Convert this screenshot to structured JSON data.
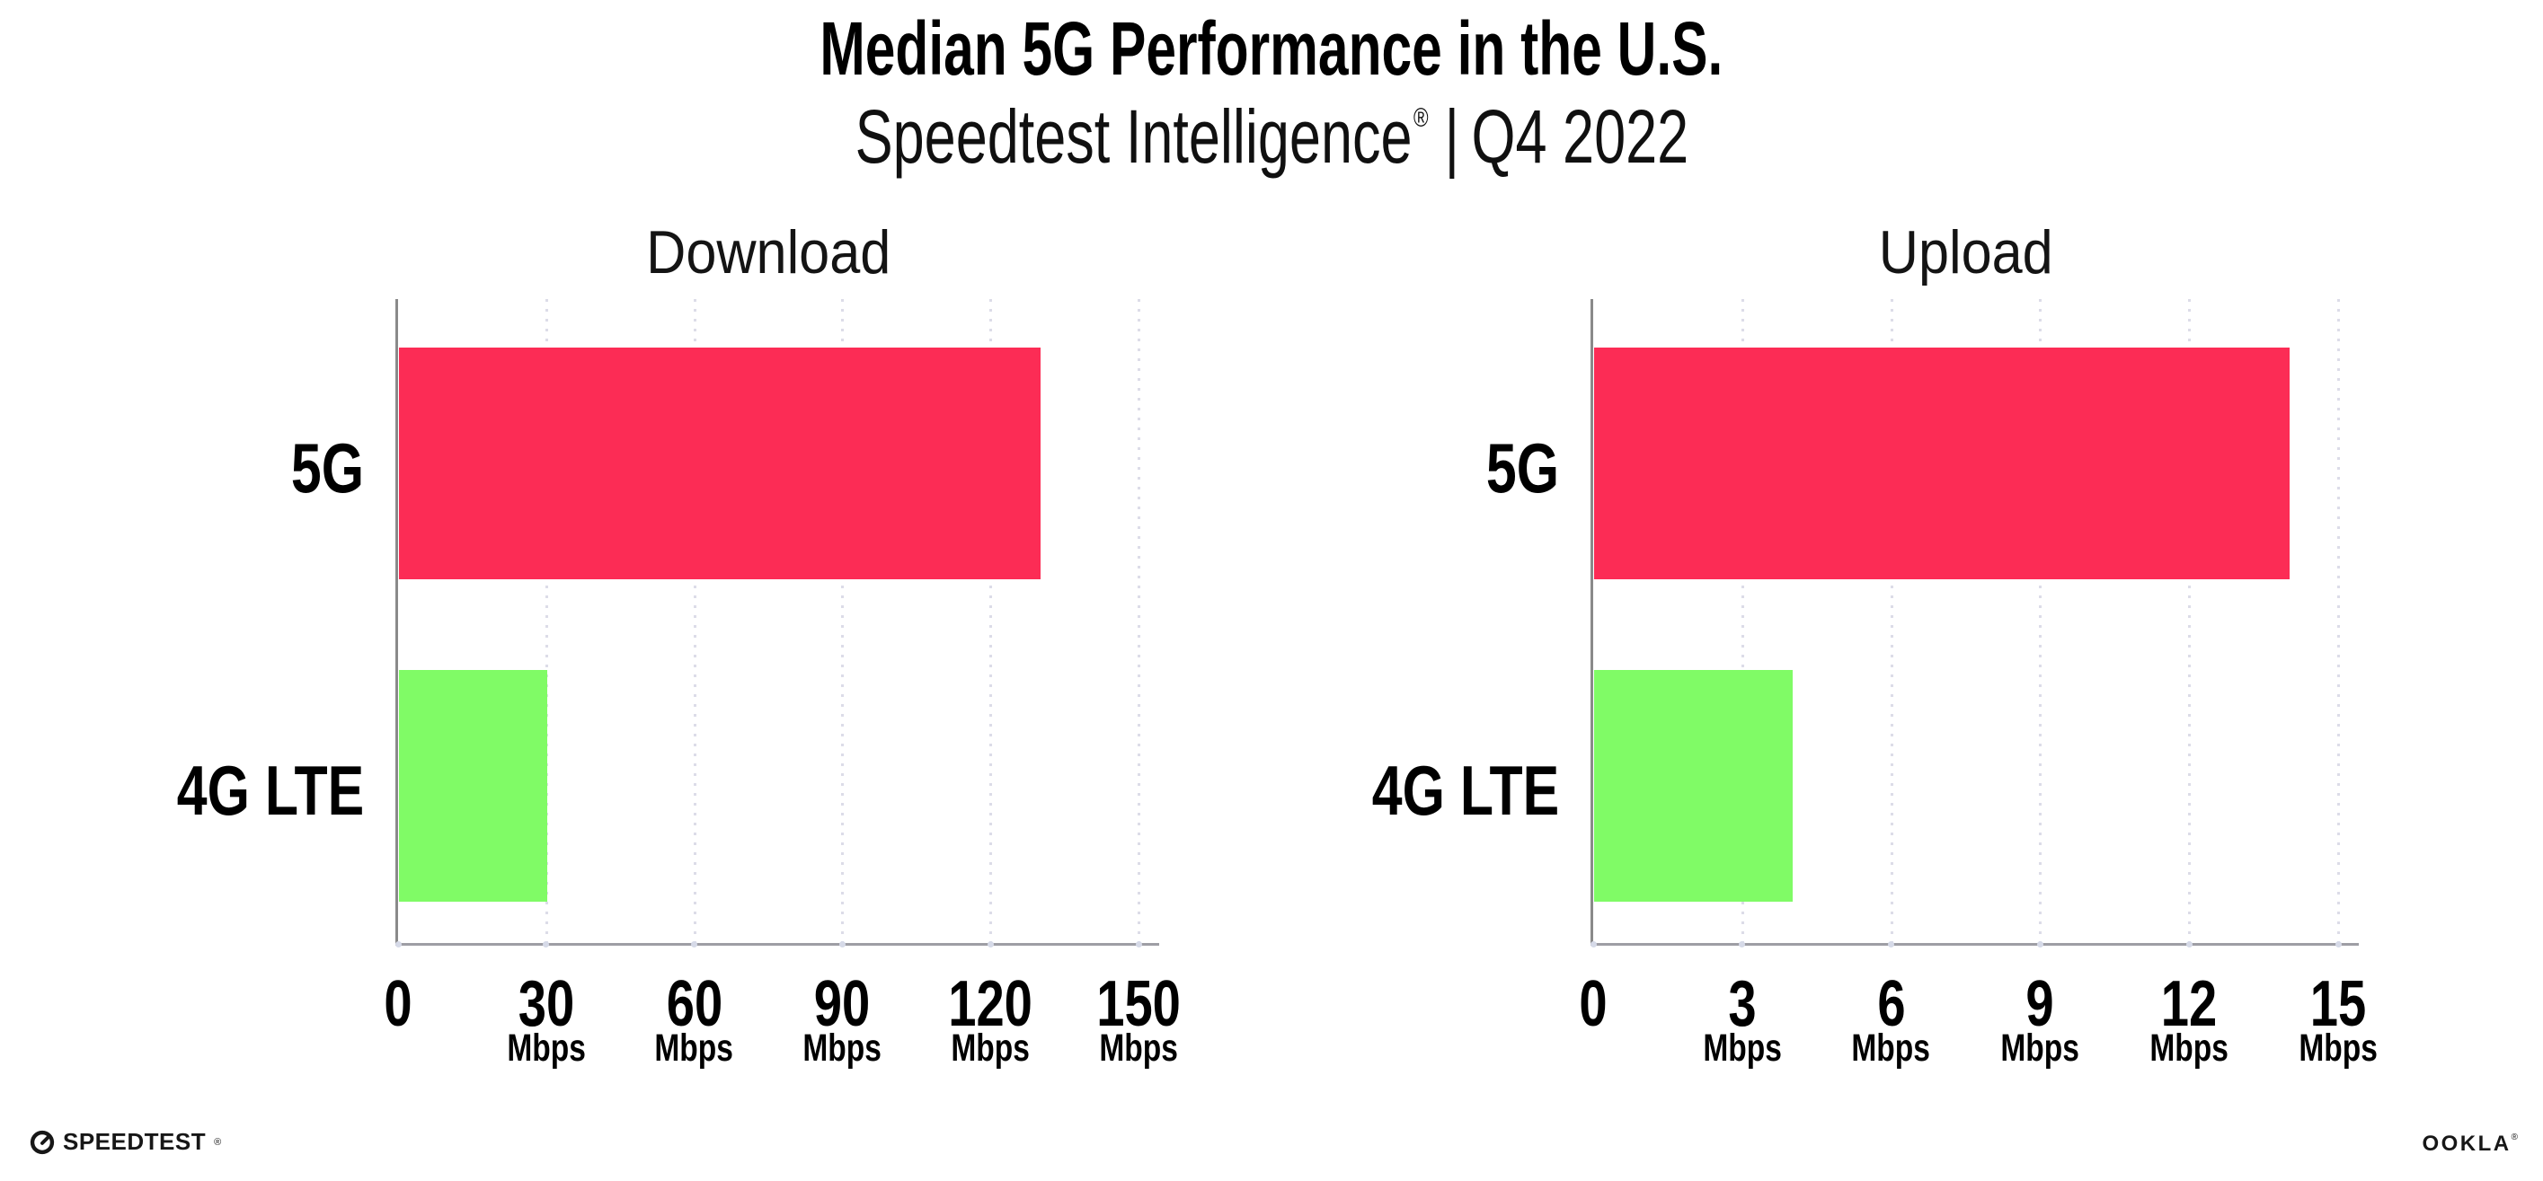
{
  "header": {
    "title": "Median 5G Performance in the U.S.",
    "subtitle": {
      "brand": "Speedtest Intelligence",
      "registered_mark": "®",
      "separator": "|",
      "period": "Q4 2022"
    }
  },
  "chart_data": [
    {
      "type": "bar",
      "orientation": "horizontal",
      "title": "Download",
      "categories": [
        "5G",
        "4G LTE"
      ],
      "values": [
        130,
        30
      ],
      "value_unit": "Mbps",
      "series_colors": [
        "#fc2c55",
        "#80fb66"
      ],
      "xlim": [
        0,
        150
      ],
      "xticks": [
        0,
        30,
        60,
        90,
        120,
        150
      ],
      "xtick_unit": "Mbps",
      "grid": "vertical-dotted",
      "legend": "none"
    },
    {
      "type": "bar",
      "orientation": "horizontal",
      "title": "Upload",
      "categories": [
        "5G",
        "4G LTE"
      ],
      "values": [
        14,
        4
      ],
      "value_unit": "Mbps",
      "series_colors": [
        "#fc2c55",
        "#80fb66"
      ],
      "xlim": [
        0,
        15
      ],
      "xticks": [
        0,
        3,
        6,
        9,
        12,
        15
      ],
      "xtick_unit": "Mbps",
      "grid": "vertical-dotted",
      "legend": "none"
    }
  ],
  "footer": {
    "speedtest": {
      "icon": "speedtest-gauge-icon",
      "label": "SPEEDTEST",
      "trademark": "®"
    },
    "ookla": {
      "label": "OOKLA",
      "trademark": "®"
    }
  },
  "colors": {
    "bar_5g": "#fc2c55",
    "bar_4g_lte": "#80fb66",
    "gridline": "#dcdce8",
    "axis_x": "#9e9ea4",
    "axis_y": "#8a8a8a",
    "tick_dot": "#d6dae8",
    "text": "#000000"
  }
}
